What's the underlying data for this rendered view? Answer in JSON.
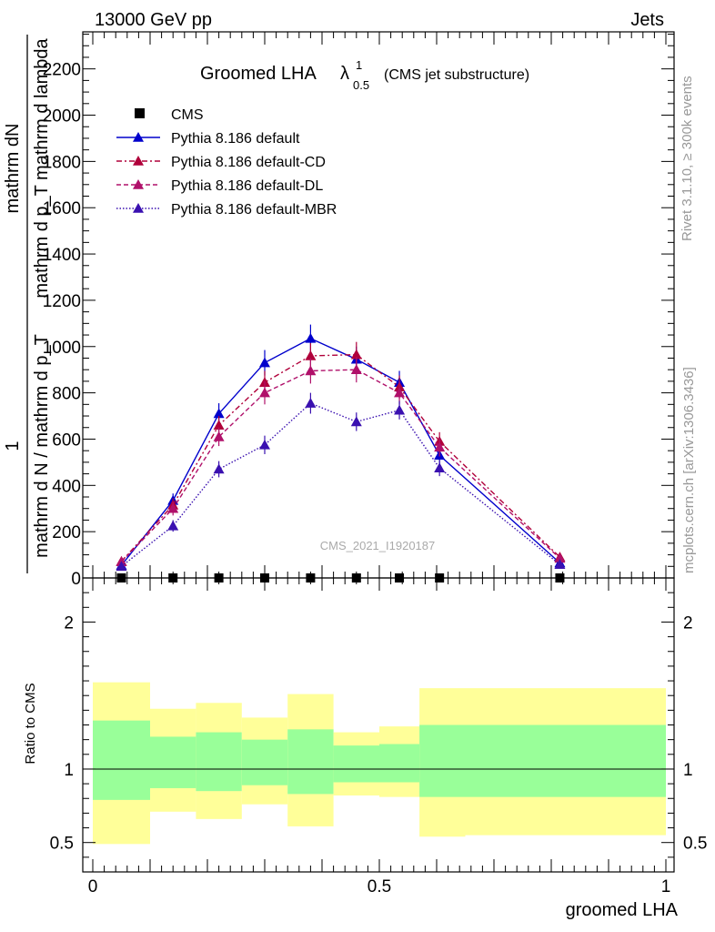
{
  "header": {
    "left": "13000 GeV pp",
    "right": "Jets"
  },
  "side_labels": {
    "rivet": "Rivet 3.1.10, ≥ 300k events",
    "mcplots": "mcplots.cern.ch [arXiv:1306.3436]"
  },
  "watermark": "CMS_2021_I1920187",
  "chart_data": {
    "type": "line",
    "title_main": "Groomed LHA",
    "title_lambda": "λ",
    "title_sup": "1",
    "title_sub": "0.5",
    "title_suffix": "(CMS jet substructure)",
    "ylabel_line1": "1",
    "ylabel_line2": "mathrm d N / mathrm d p_T",
    "ylabel_line3": "mathrm dN",
    "ylabel_line4": "mathrm d p_T mathrm d lambda",
    "xlabel": "groomed LHA",
    "ratio_ylabel": "Ratio to CMS",
    "xlim": [
      0,
      1
    ],
    "ylim": [
      0,
      2360
    ],
    "ratio_ylim": [
      0.3,
      2.3
    ],
    "x_ticks": [
      "0",
      "0.5",
      "1"
    ],
    "y_ticks": [
      "0",
      "200",
      "400",
      "600",
      "800",
      "1000",
      "1200",
      "1400",
      "1600",
      "1800",
      "2000",
      "2200"
    ],
    "ratio_y_ticks": [
      "0.5",
      "1",
      "2"
    ],
    "x": [
      0.05,
      0.14,
      0.22,
      0.3,
      0.38,
      0.46,
      0.535,
      0.605,
      0.815
    ],
    "bin_edges": [
      0,
      0.1,
      0.18,
      0.26,
      0.34,
      0.42,
      0.5,
      0.57,
      0.65,
      1.0
    ],
    "series": [
      {
        "name": "CMS",
        "color": "#000000",
        "style": "marker",
        "values": [
          0,
          0,
          0,
          0,
          0,
          0,
          0,
          0,
          0
        ]
      },
      {
        "name": "Pythia 8.186 default",
        "color": "#0000cc",
        "style": "solid",
        "values": [
          55,
          335,
          710,
          930,
          1035,
          945,
          845,
          530,
          65
        ],
        "errors": [
          15,
          30,
          45,
          55,
          60,
          55,
          50,
          40,
          12
        ]
      },
      {
        "name": "Pythia 8.186 default-CD",
        "color": "#b0003a",
        "style": "dashdot",
        "values": [
          72,
          315,
          660,
          845,
          960,
          965,
          825,
          590,
          90
        ],
        "errors": [
          15,
          30,
          40,
          50,
          55,
          55,
          50,
          40,
          12
        ]
      },
      {
        "name": "Pythia 8.186 default-DL",
        "color": "#b0106a",
        "style": "dashed",
        "values": [
          70,
          300,
          610,
          800,
          895,
          900,
          800,
          565,
          85
        ],
        "errors": [
          15,
          30,
          40,
          50,
          55,
          55,
          50,
          40,
          12
        ]
      },
      {
        "name": "Pythia 8.186 default-MBR",
        "color": "#3a10b0",
        "style": "dotted",
        "values": [
          50,
          225,
          470,
          575,
          755,
          675,
          725,
          475,
          58
        ],
        "errors": [
          12,
          25,
          35,
          40,
          45,
          40,
          40,
          35,
          10
        ]
      }
    ],
    "ratio_bands": {
      "yellow_low": [
        0.49,
        0.71,
        0.66,
        0.76,
        0.61,
        0.82,
        0.81,
        0.54,
        0.55
      ],
      "yellow_high": [
        1.59,
        1.41,
        1.45,
        1.35,
        1.51,
        1.25,
        1.29,
        1.55,
        1.55
      ],
      "green_low": [
        0.79,
        0.87,
        0.85,
        0.89,
        0.83,
        0.91,
        0.91,
        0.81,
        0.81
      ],
      "green_high": [
        1.33,
        1.22,
        1.25,
        1.2,
        1.27,
        1.16,
        1.17,
        1.3,
        1.3
      ]
    }
  },
  "colors": {
    "yellow_band": "#ffff99",
    "green_band": "#99ff99"
  }
}
